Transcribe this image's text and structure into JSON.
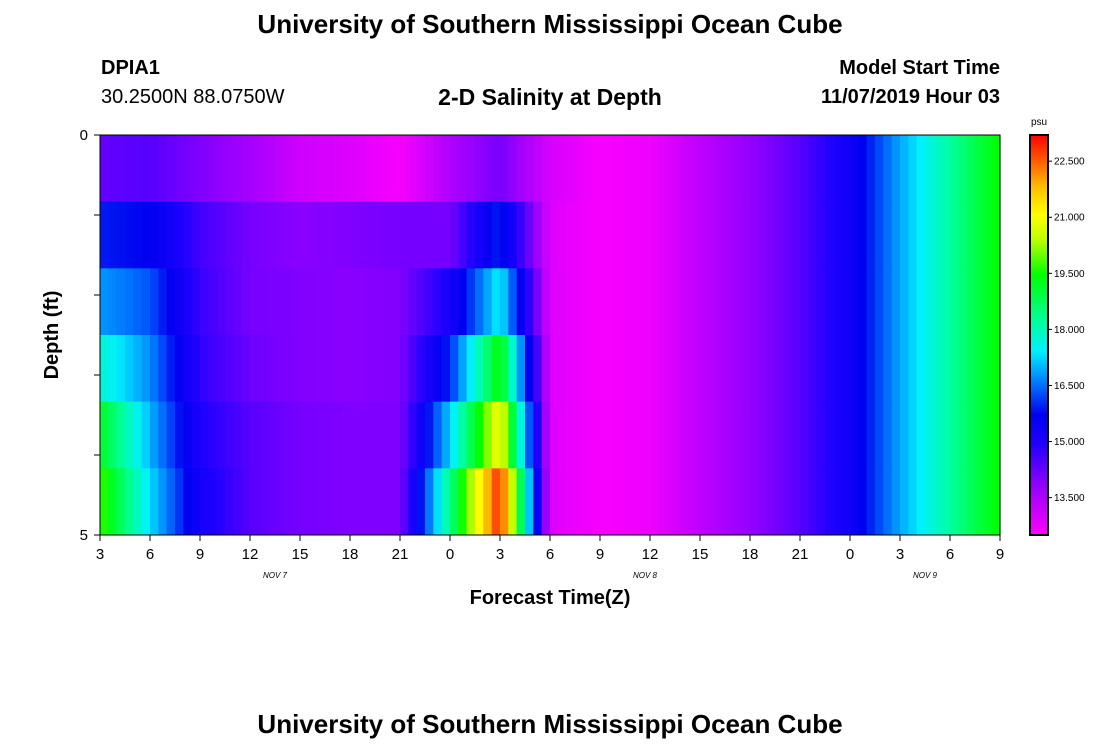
{
  "header": {
    "title": "University of Southern Mississippi Ocean Cube",
    "station_id": "DPIA1",
    "station_coords": "30.2500N 88.0750W",
    "plot_title": "2-D Salinity at Depth",
    "model_start_label": "Model Start Time",
    "model_start_value": "11/07/2019 Hour 03"
  },
  "footer": {
    "title": "University of Southern Mississippi Ocean Cube"
  },
  "chart_data": {
    "type": "heatmap",
    "title": "2-D Salinity at Depth",
    "xlabel": "Forecast Time(Z)",
    "ylabel": "Depth (ft)",
    "x_tick_labels": [
      "3",
      "6",
      "9",
      "12",
      "15",
      "18",
      "21",
      "0",
      "3",
      "6",
      "9",
      "12",
      "15",
      "18",
      "21",
      "0",
      "3",
      "6",
      "9"
    ],
    "x_month_labels": [
      {
        "label": "NOV  7",
        "tick_index": 3.5
      },
      {
        "label": "NOV  8",
        "tick_index": 10.9
      },
      {
        "label": "NOV  9",
        "tick_index": 16.5
      }
    ],
    "y_tick_labels": [
      {
        "label": "0",
        "depth": 0
      },
      {
        "label": "",
        "depth": 1
      },
      {
        "label": "",
        "depth": 2
      },
      {
        "label": "",
        "depth": 3
      },
      {
        "label": "",
        "depth": 4
      },
      {
        "label": "5",
        "depth": 5
      }
    ],
    "ylim": [
      0,
      5
    ],
    "x_hours_since_start": [
      0,
      3,
      6,
      9,
      12,
      15,
      18,
      21,
      24,
      27,
      30,
      33,
      36,
      39,
      42,
      45,
      48,
      51,
      54
    ],
    "depth_layers": [
      0,
      1,
      2,
      3,
      4,
      5
    ],
    "colorbar": {
      "unit": "psu",
      "min": 12.5,
      "max": 23.2,
      "tick_labels": [
        "13.500",
        "15.000",
        "16.500",
        "18.000",
        "19.500",
        "21.000",
        "22.500"
      ],
      "tick_values": [
        13.5,
        15.0,
        16.5,
        18.0,
        19.5,
        21.0,
        22.5
      ]
    },
    "values_psu": [
      [
        14.3,
        14.4,
        14.0,
        13.6,
        13.1,
        12.9,
        12.6,
        13.5,
        14.1,
        13.0,
        12.6,
        12.7,
        13.3,
        13.8,
        14.4,
        15.3,
        16.9,
        18.2,
        19.5
      ],
      [
        15.9,
        15.7,
        14.6,
        14.1,
        13.9,
        14.0,
        14.1,
        14.1,
        16.0,
        12.9,
        12.6,
        12.7,
        13.3,
        13.8,
        14.4,
        15.3,
        16.9,
        18.2,
        19.5
      ],
      [
        16.8,
        16.3,
        14.7,
        14.1,
        14.0,
        13.9,
        14.0,
        15.1,
        17.5,
        12.9,
        12.6,
        12.7,
        13.3,
        13.8,
        14.4,
        15.3,
        16.9,
        18.2,
        19.5
      ],
      [
        17.8,
        16.7,
        14.8,
        14.2,
        14.0,
        13.9,
        14.0,
        16.0,
        19.5,
        12.9,
        12.6,
        12.7,
        13.3,
        13.8,
        14.4,
        15.3,
        16.9,
        18.2,
        19.5
      ],
      [
        19.2,
        17.0,
        15.0,
        14.4,
        14.1,
        14.0,
        14.0,
        17.2,
        21.1,
        12.9,
        12.6,
        12.7,
        13.3,
        13.8,
        14.4,
        15.3,
        16.9,
        18.2,
        19.5
      ],
      [
        19.8,
        17.3,
        15.2,
        14.4,
        14.1,
        14.0,
        14.0,
        18.4,
        23.0,
        12.9,
        12.6,
        12.7,
        13.3,
        13.8,
        14.4,
        15.3,
        16.9,
        18.2,
        19.5
      ]
    ]
  }
}
